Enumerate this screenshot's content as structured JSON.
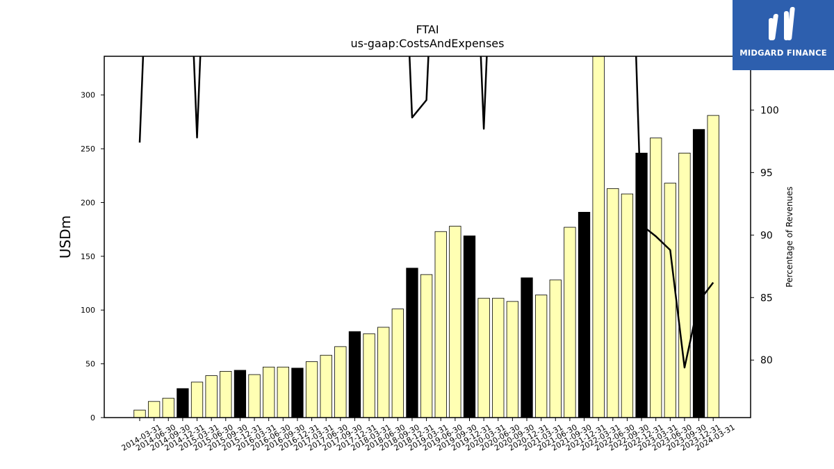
{
  "brand": {
    "name": "MIDGARD FINANCE",
    "bg_color": "#2d5fae",
    "icon": "midgard-logo-icon"
  },
  "chart_data": {
    "type": "bar",
    "title": "FTAI",
    "subtitle": "us-gaap:CostsAndExpenses",
    "ylabel": "USDm",
    "y2label": "Percentage of Revenues",
    "ylim": [
      0,
      336
    ],
    "y2lim": [
      75.4,
      104.3
    ],
    "yticks": [
      0,
      50,
      100,
      150,
      200,
      250,
      300
    ],
    "y2ticks": [
      80,
      85,
      90,
      95,
      100
    ],
    "grid": false,
    "colors": {
      "bar": "#ffffb3",
      "bar_q4": "#000000",
      "line": "#000000"
    },
    "categories": [
      "2014-03-31",
      "2014-06-30",
      "2014-09-30",
      "2014-12-31",
      "2015-03-31",
      "2015-06-30",
      "2015-09-30",
      "2015-12-31",
      "2016-03-31",
      "2016-06-30",
      "2016-09-30",
      "2016-12-31",
      "2017-03-31",
      "2017-06-30",
      "2017-09-30",
      "2017-12-31",
      "2018-03-31",
      "2018-06-30",
      "2018-09-30",
      "2018-12-31",
      "2019-03-31",
      "2019-06-30",
      "2019-09-30",
      "2019-12-31",
      "2020-03-31",
      "2020-06-30",
      "2020-09-30",
      "2020-12-31",
      "2021-03-31",
      "2021-06-30",
      "2021-09-30",
      "2021-12-31",
      "2022-03-31",
      "2022-06-30",
      "2022-09-30",
      "2022-12-31",
      "2023-03-31",
      "2023-06-30",
      "2023-09-30",
      "2023-12-31",
      "2024-03-31"
    ],
    "series": [
      {
        "kind": "bar",
        "values": [
          7,
          15,
          18,
          27,
          33,
          39,
          43,
          44,
          40,
          47,
          47,
          46,
          52,
          58,
          66,
          80,
          78,
          84,
          101,
          139,
          133,
          173,
          178,
          169,
          111,
          111,
          108,
          130,
          114,
          128,
          177,
          191,
          336,
          213,
          208,
          246,
          260,
          218,
          246,
          268,
          281
        ]
      },
      {
        "kind": "line",
        "axis": "right",
        "values": [
          97.4,
          null,
          null,
          null,
          97.8,
          null,
          null,
          null,
          null,
          null,
          null,
          null,
          null,
          null,
          null,
          null,
          null,
          null,
          null,
          99.4,
          100.8,
          null,
          null,
          null,
          98.5,
          null,
          null,
          null,
          null,
          null,
          null,
          null,
          null,
          null,
          null,
          90.8,
          89.9,
          88.8,
          79.4,
          84.7,
          86.2
        ]
      }
    ]
  }
}
